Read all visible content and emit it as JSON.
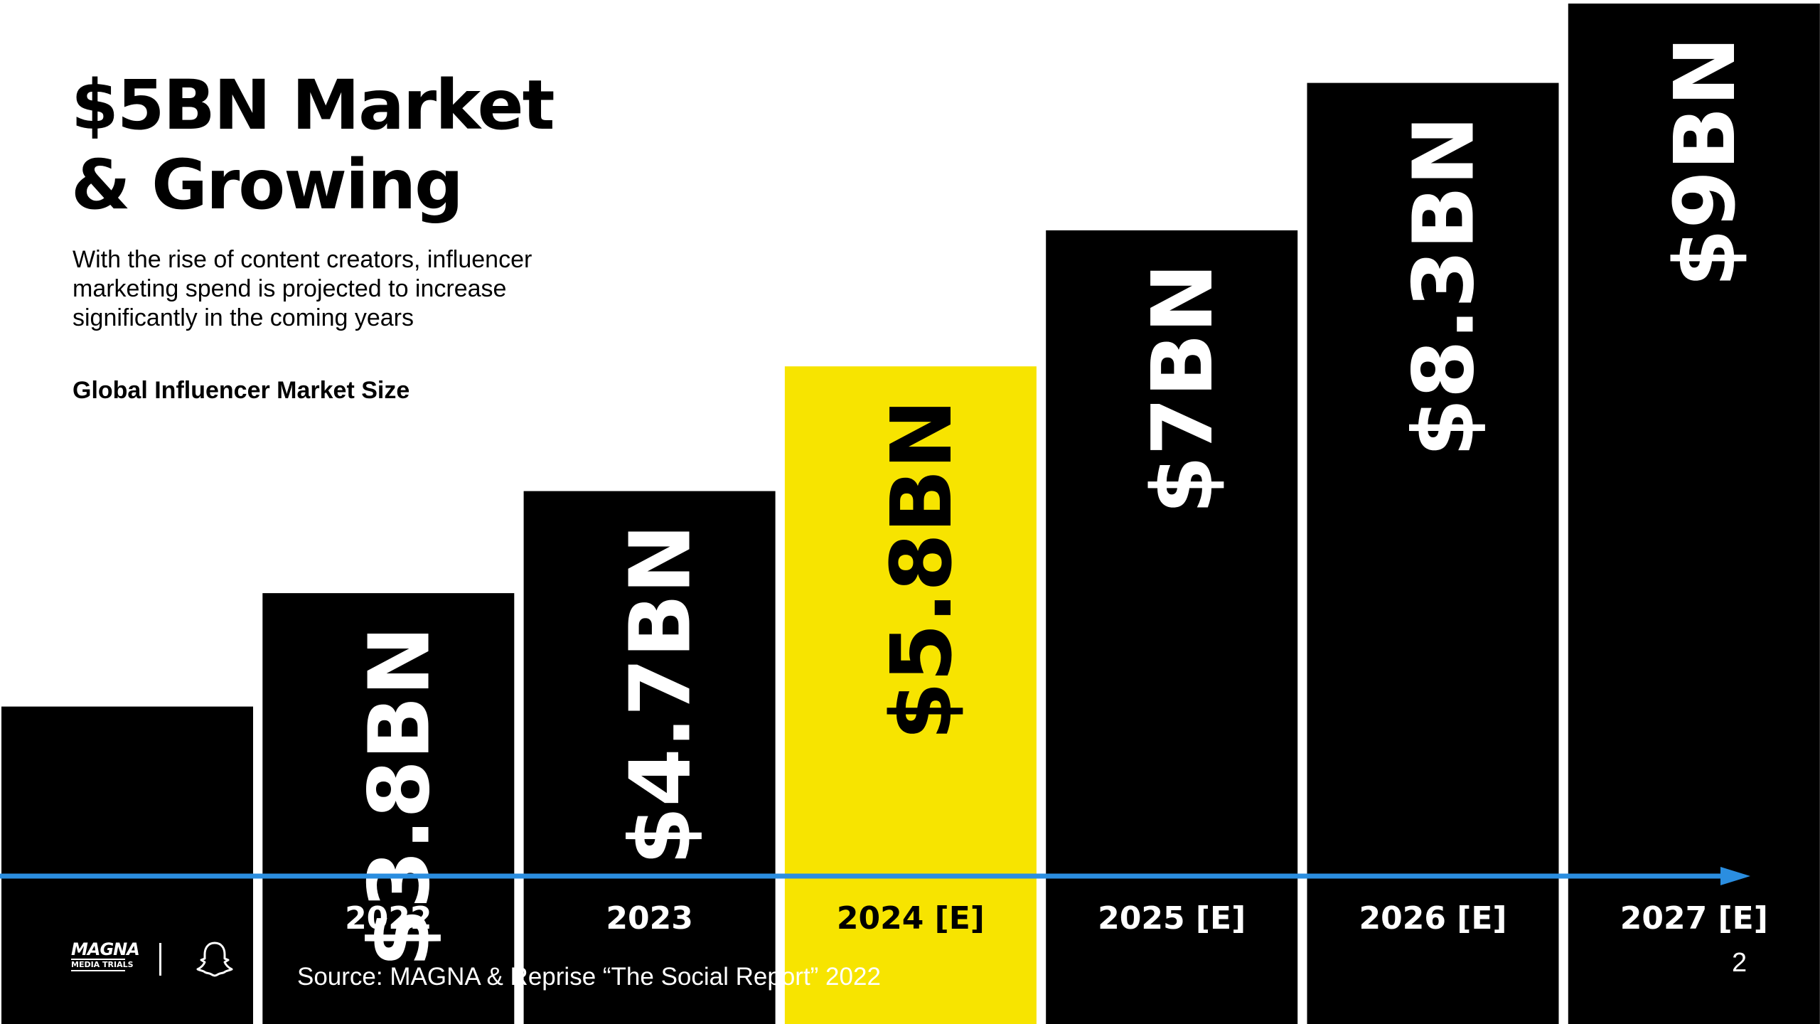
{
  "slide": {
    "title_lines": [
      "$5BN Market",
      "& Growing"
    ],
    "subtitle_lines": [
      "With the rise of content creators, influencer",
      "marketing spend is projected to increase",
      "significantly in the coming years"
    ],
    "chart_label": "Global Influencer Market Size",
    "source": "Source: MAGNA & Reprise “The Social Report” 2022",
    "page_number": "2",
    "logo": {
      "top": "MAGNA",
      "bottom": "MEDIA TRIALS",
      "icon": "snapchat-ghost-icon"
    }
  },
  "colors": {
    "bar": "#000000",
    "highlight": "#f7e400",
    "arrow": "#2b8ee0",
    "label_on_dark": "#ffffff",
    "label_on_highlight": "#000000"
  },
  "chart_data": {
    "type": "bar",
    "title": "Global Influencer Market Size",
    "categories": [
      "",
      "2022",
      "2023",
      "2024 [E]",
      "2025 [E]",
      "2026 [E]",
      "2027 [E]"
    ],
    "values": [
      2.8,
      3.8,
      4.7,
      5.8,
      7.0,
      8.3,
      9.0
    ],
    "value_labels": [
      "",
      "$3.8BN",
      "$4.7BN",
      "$5.8BN",
      "$7BN",
      "$8.3BN",
      "$9BN"
    ],
    "highlight_index": 3,
    "ylim": [
      0,
      9
    ],
    "grid": false,
    "legend": "none"
  }
}
